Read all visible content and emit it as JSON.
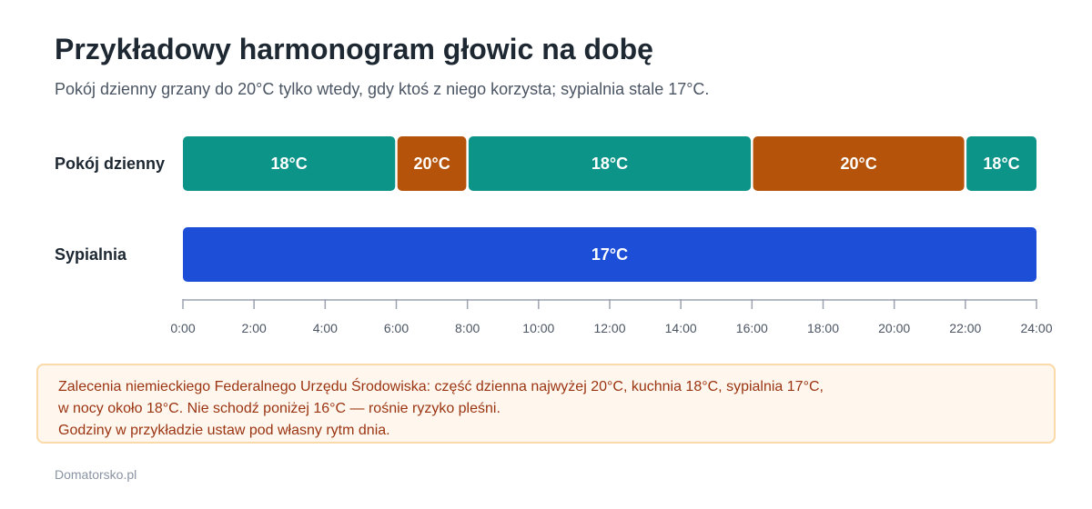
{
  "header": {
    "title": "Przykładowy harmonogram głowic na dobę",
    "subtitle": "Pokój dzienny grzany do 20°C tylko wtedy, gdy ktoś z niego korzysta; sypialnia stale 17°C."
  },
  "chart_data": {
    "type": "bar",
    "orientation": "horizontal-timeline",
    "x_range": [
      0,
      24
    ],
    "x_unit": "hours",
    "x_ticks": [
      "0:00",
      "2:00",
      "4:00",
      "6:00",
      "8:00",
      "10:00",
      "12:00",
      "14:00",
      "16:00",
      "18:00",
      "20:00",
      "22:00",
      "24:00"
    ],
    "rows": [
      {
        "label": "Pokój dzienny",
        "segments": [
          {
            "start": 0,
            "end": 6,
            "label": "18°C",
            "color": "#0d9488"
          },
          {
            "start": 6,
            "end": 8,
            "label": "20°C",
            "color": "#b45309"
          },
          {
            "start": 8,
            "end": 16,
            "label": "18°C",
            "color": "#0d9488"
          },
          {
            "start": 16,
            "end": 22,
            "label": "20°C",
            "color": "#b45309"
          },
          {
            "start": 22,
            "end": 24,
            "label": "18°C",
            "color": "#0d9488"
          }
        ]
      },
      {
        "label": "Sypialnia",
        "segments": [
          {
            "start": 0,
            "end": 24,
            "label": "17°C",
            "color": "#1d4ed8"
          }
        ]
      }
    ]
  },
  "note": {
    "lines": [
      "Zalecenia niemieckiego Federalnego Urzędu Środowiska: część dzienna najwyżej 20°C, kuchnia 18°C, sypialnia 17°C,",
      "w nocy około 18°C. Nie schodź poniżej 16°C — rośnie ryzyko pleśni.",
      "Godziny w przykładzie ustaw pod własny rytm dnia."
    ]
  },
  "footer": {
    "source": "Domatorsko.pl"
  }
}
